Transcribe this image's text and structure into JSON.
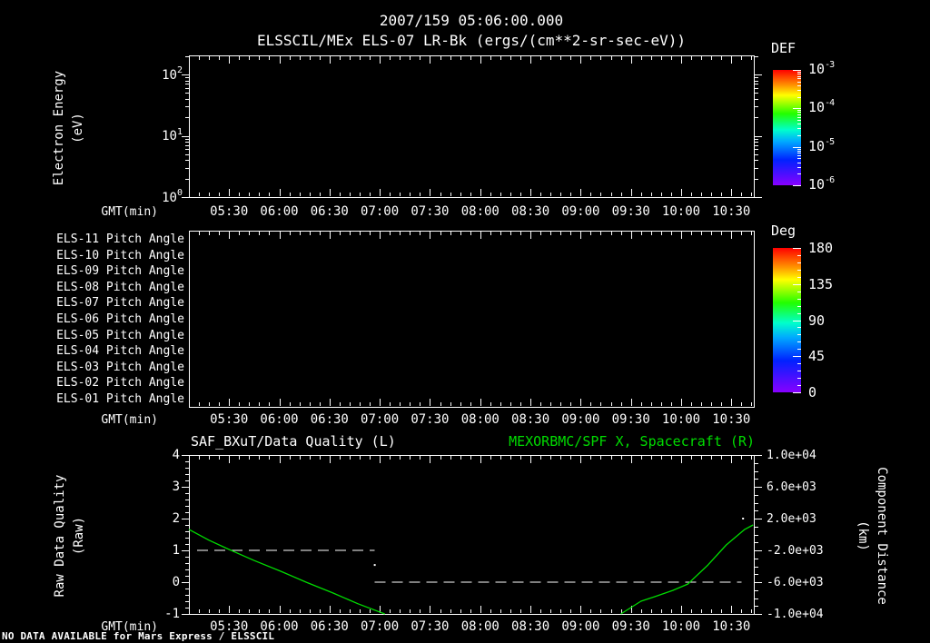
{
  "titles": {
    "line1": "2007/159 05:06:00.000",
    "line2": "ELSSCIL/MEx ELS-07 LR-Bk  (ergs/(cm**2-sr-sec-eV))"
  },
  "footer_note": "NO DATA AVAILABLE for Mars Express / ELSSCIL",
  "x_axis": {
    "label": "GMT(min)",
    "tick_labels": [
      "05:30",
      "06:00",
      "06:30",
      "07:00",
      "07:30",
      "08:00",
      "08:30",
      "09:00",
      "09:30",
      "10:00",
      "10:30"
    ]
  },
  "energy_panel": {
    "ylabel_line1": "Electron Energy",
    "ylabel_line2": "(eV)",
    "ytick_labels": [
      {
        "base": "10",
        "sup": "2"
      },
      {
        "base": "10",
        "sup": "1"
      },
      {
        "base": "10",
        "sup": "0"
      }
    ],
    "colorbar": {
      "title": "DEF",
      "tick_labels": [
        {
          "base": "10",
          "sup": "-3"
        },
        {
          "base": "10",
          "sup": "-4"
        },
        {
          "base": "10",
          "sup": "-5"
        },
        {
          "base": "10",
          "sup": "-6"
        }
      ]
    }
  },
  "pitch_panel": {
    "row_labels": [
      "ELS-11 Pitch Angle",
      "ELS-10 Pitch Angle",
      "ELS-09 Pitch Angle",
      "ELS-08 Pitch Angle",
      "ELS-07 Pitch Angle",
      "ELS-06 Pitch Angle",
      "ELS-05 Pitch Angle",
      "ELS-04 Pitch Angle",
      "ELS-03 Pitch Angle",
      "ELS-02 Pitch Angle",
      "ELS-01 Pitch Angle"
    ],
    "colorbar": {
      "title": "Deg",
      "tick_labels": [
        "180",
        "135",
        "90",
        "45",
        "0"
      ]
    }
  },
  "quality_panel": {
    "title_left": "SAF_BXuT/Data Quality (L)",
    "title_right": "MEXORBMC/SPF X, Spacecraft (R)",
    "ylabel_left_line1": "Raw Data Quality",
    "ylabel_left_line2": "(Raw)",
    "ylabel_right_line1": "Component Distance",
    "ylabel_right_line2": "(km)",
    "ytick_labels_left": [
      "4",
      "3",
      "2",
      "1",
      "0",
      "-1"
    ],
    "ytick_labels_right": [
      "1.0e+04",
      "6.0e+03",
      "2.0e+03",
      "-2.0e+03",
      "-6.0e+03",
      "-1.0e+04"
    ]
  },
  "colors": {
    "background": "#000000",
    "foreground": "#ffffff",
    "accent_green": "#00dc00",
    "rainbow_stops": [
      {
        "c": "#ff0000",
        "p": 0.0
      },
      {
        "c": "#ff9000",
        "p": 0.13
      },
      {
        "c": "#ffff00",
        "p": 0.22
      },
      {
        "c": "#22ff00",
        "p": 0.38
      },
      {
        "c": "#00ffcc",
        "p": 0.52
      },
      {
        "c": "#00aaff",
        "p": 0.62
      },
      {
        "c": "#0022ff",
        "p": 0.78
      },
      {
        "c": "#8800ff",
        "p": 1.0
      }
    ]
  },
  "chart_data": [
    {
      "type": "heatmap",
      "panel": "electron-energy-spectrogram",
      "title": "ELSSCIL/MEx ELS-07 LR-Bk (ergs/(cm**2-sr-sec-eV))",
      "xlabel": "GMT(min)",
      "x_tick_labels": [
        "05:30",
        "06:00",
        "06:30",
        "07:00",
        "07:30",
        "08:00",
        "08:30",
        "09:00",
        "09:30",
        "10:00",
        "10:30"
      ],
      "ylabel": "Electron Energy (eV)",
      "y_scale": "log",
      "y_tick_labels": [
        "10^0",
        "10^1",
        "10^2"
      ],
      "colorbar": {
        "title": "DEF",
        "scale": "log",
        "tick_labels": [
          "10^-3",
          "10^-4",
          "10^-5",
          "10^-6"
        ]
      },
      "no_data": true
    },
    {
      "type": "heatmap",
      "panel": "pitch-angle-rows",
      "rows": [
        "ELS-11",
        "ELS-10",
        "ELS-09",
        "ELS-08",
        "ELS-07",
        "ELS-06",
        "ELS-05",
        "ELS-04",
        "ELS-03",
        "ELS-02",
        "ELS-01"
      ],
      "xlabel": "GMT(min)",
      "colorbar": {
        "title": "Deg",
        "range": [
          0,
          180
        ],
        "tick_labels": [
          180,
          135,
          90,
          45,
          0
        ]
      },
      "no_data": true
    },
    {
      "type": "line",
      "panel": "data-quality-and-spacecraft-distance",
      "xlabel": "GMT(min)",
      "x_tick_labels": [
        "05:30",
        "06:00",
        "06:30",
        "07:00",
        "07:30",
        "08:00",
        "08:30",
        "09:00",
        "09:30",
        "10:00",
        "10:30"
      ],
      "y_left": {
        "label": "Raw Data Quality (Raw)",
        "range": [
          -1,
          4
        ],
        "ticks": [
          4,
          3,
          2,
          1,
          0,
          -1
        ]
      },
      "y_right": {
        "label": "Component Distance (km)",
        "range": [
          -10000,
          10000
        ],
        "ticks": [
          10000,
          6000,
          2000,
          -2000,
          -6000,
          -10000
        ]
      },
      "series": [
        {
          "name": "SAF_BXuT/Data Quality (L)",
          "axis": "left",
          "style": {
            "color": "#ffffff",
            "dash": true
          },
          "segments": [
            [
              {
                "t": "05:11",
                "v": 1
              },
              {
                "t": "06:57",
                "v": 1
              }
            ],
            [
              {
                "t": "06:57",
                "v": 0
              },
              {
                "t": "10:36",
                "v": 0
              }
            ]
          ]
        },
        {
          "name": "MEXORBMC/SPF X, Spacecraft (R)",
          "axis": "left-units (km = 4000*v - 6000 on right axis)",
          "style": {
            "color": "#00dc00",
            "dash": false
          },
          "clipped_below": -1,
          "note": "curve is off-scale below -1 between ~07:03 and ~09:24",
          "segments": [
            [
              {
                "t": "05:06",
                "v": 1.66
              },
              {
                "t": "05:18",
                "v": 1.32
              },
              {
                "t": "05:30",
                "v": 1.03
              },
              {
                "t": "05:45",
                "v": 0.68
              },
              {
                "t": "06:01",
                "v": 0.34
              },
              {
                "t": "06:16",
                "v": 0.0
              },
              {
                "t": "06:32",
                "v": -0.34
              },
              {
                "t": "06:47",
                "v": -0.68
              },
              {
                "t": "07:03",
                "v": -1.0
              }
            ],
            [
              {
                "t": "09:24",
                "v": -1.0
              },
              {
                "t": "09:36",
                "v": -0.6
              },
              {
                "t": "09:44",
                "v": -0.46
              },
              {
                "t": "09:55",
                "v": -0.26
              },
              {
                "t": "10:04",
                "v": -0.06
              },
              {
                "t": "10:16",
                "v": 0.54
              },
              {
                "t": "10:27",
                "v": 1.17
              },
              {
                "t": "10:38",
                "v": 1.66
              },
              {
                "t": "10:43",
                "v": 1.8
              }
            ]
          ]
        }
      ],
      "isolated_points": [
        {
          "t": "06:57",
          "v": 0.54
        },
        {
          "t": "10:37",
          "v": 2.0
        }
      ]
    }
  ]
}
